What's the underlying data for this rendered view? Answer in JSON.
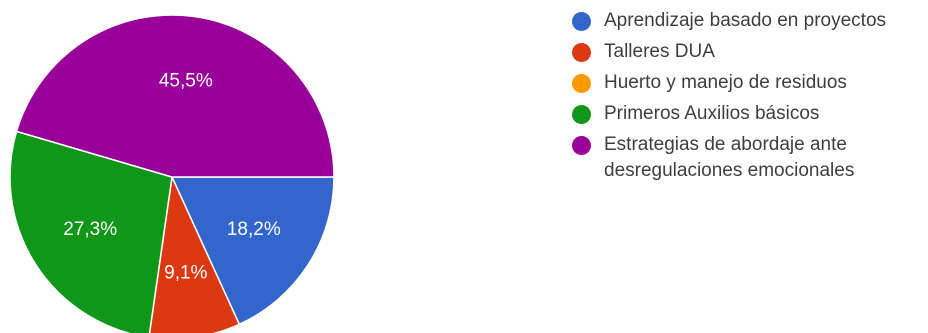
{
  "chart_data": {
    "type": "pie",
    "title": "",
    "series": [
      {
        "values": [
          18.2,
          9.1,
          0,
          27.3,
          45.5
        ]
      }
    ],
    "categories": [
      "Aprendizaje basado en proyectos",
      "Talleres DUA",
      "Huerto y manejo de residuos",
      "Primeros Auxilios básicos",
      "Estrategias de abordaje ante desregulaciones emocionales"
    ],
    "labels": [
      "18,2%",
      "9,1%",
      "",
      "27,3%",
      "45,5%"
    ],
    "colors": [
      "#3366cc",
      "#dc3912",
      "#ff9900",
      "#109618",
      "#990099"
    ],
    "legend": "right"
  }
}
